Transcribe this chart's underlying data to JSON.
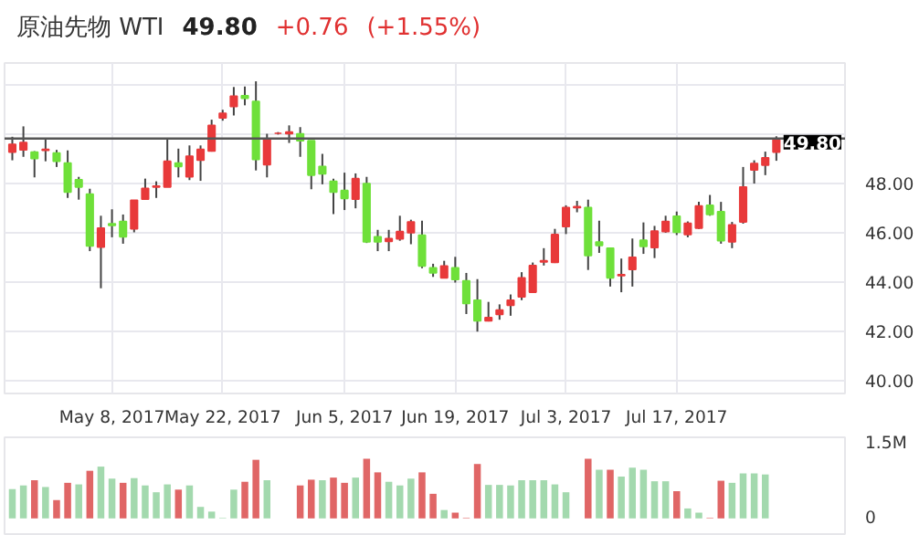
{
  "chart_data": [
    {
      "type": "candlestick",
      "title": "原油先物 WTI",
      "annotations": [
        "49.80",
        "+0.76",
        "(+1.55%)"
      ],
      "categories": [
        null,
        null,
        null,
        null,
        null,
        null,
        null,
        null,
        null,
        "May 8, 2017",
        null,
        null,
        null,
        null,
        null,
        null,
        null,
        null,
        null,
        "May 22, 2017",
        null,
        null,
        null,
        null,
        null,
        null,
        null,
        null,
        null,
        null,
        "Jun 5, 2017",
        null,
        null,
        null,
        null,
        null,
        null,
        null,
        null,
        null,
        "Jun 19, 2017",
        null,
        null,
        null,
        null,
        null,
        null,
        null,
        null,
        null,
        "Jul 3, 2017",
        null,
        null,
        null,
        null,
        null,
        null,
        null,
        null,
        null,
        "Jul 17, 2017",
        null,
        null,
        null,
        null,
        null,
        null,
        null,
        null,
        null
      ],
      "ohlc": [
        [
          49.25,
          49.87,
          48.92,
          49.57
        ],
        [
          49.34,
          50.29,
          49.06,
          49.64
        ],
        [
          49.25,
          49.29,
          48.23,
          48.99
        ],
        [
          49.32,
          49.8,
          48.88,
          49.36
        ],
        [
          49.22,
          49.34,
          48.65,
          48.88
        ],
        [
          48.81,
          49.32,
          47.4,
          47.63
        ],
        [
          48.14,
          48.25,
          47.33,
          47.84
        ],
        [
          47.56,
          47.77,
          45.25,
          45.46
        ],
        [
          45.41,
          46.68,
          43.75,
          46.18
        ],
        [
          46.36,
          46.94,
          45.81,
          46.29
        ],
        [
          46.45,
          46.73,
          45.55,
          45.83
        ],
        [
          46.15,
          47.31,
          46.01,
          47.31
        ],
        [
          47.35,
          48.18,
          47.35,
          47.79
        ],
        [
          47.84,
          48.07,
          47.4,
          47.88
        ],
        [
          47.84,
          49.76,
          47.84,
          48.88
        ],
        [
          48.81,
          49.39,
          48.23,
          48.67
        ],
        [
          48.25,
          49.52,
          48.12,
          49.09
        ],
        [
          48.92,
          49.52,
          48.09,
          49.36
        ],
        [
          49.29,
          50.56,
          49.27,
          50.33
        ],
        [
          50.63,
          50.96,
          50.52,
          50.82
        ],
        [
          51.09,
          51.88,
          50.73,
          51.51
        ],
        [
          51.53,
          51.9,
          51.14,
          51.42
        ],
        [
          51.3,
          52.11,
          48.51,
          48.95
        ],
        [
          48.74,
          49.99,
          48.23,
          49.8
        ],
        [
          50.01,
          50.06,
          49.96,
          50.01
        ],
        [
          49.99,
          50.33,
          49.62,
          50.06
        ],
        [
          49.99,
          50.26,
          49.06,
          49.71
        ],
        [
          49.71,
          49.71,
          47.75,
          48.32
        ],
        [
          48.67,
          49.18,
          47.95,
          48.37
        ],
        [
          48.07,
          48.18,
          46.75,
          47.63
        ],
        [
          47.7,
          48.42,
          46.91,
          47.38
        ],
        [
          47.35,
          48.39,
          46.98,
          48.18
        ],
        [
          47.98,
          48.25,
          45.58,
          45.62
        ],
        [
          45.83,
          46.11,
          45.25,
          45.62
        ],
        [
          45.64,
          46.11,
          45.25,
          45.76
        ],
        [
          45.74,
          46.68,
          45.67,
          46.04
        ],
        [
          45.99,
          46.52,
          45.53,
          46.43
        ],
        [
          45.9,
          46.48,
          44.56,
          44.65
        ],
        [
          44.58,
          44.74,
          44.21,
          44.37
        ],
        [
          44.17,
          44.86,
          44.17,
          44.65
        ],
        [
          44.58,
          45.02,
          43.98,
          44.1
        ],
        [
          44.05,
          44.37,
          42.71,
          43.13
        ],
        [
          43.27,
          44.12,
          42.0,
          42.43
        ],
        [
          42.43,
          43.2,
          42.41,
          42.57
        ],
        [
          42.69,
          43.1,
          42.48,
          42.87
        ],
        [
          43.06,
          43.5,
          42.64,
          43.27
        ],
        [
          43.4,
          44.4,
          43.27,
          44.17
        ],
        [
          43.59,
          44.79,
          43.59,
          44.67
        ],
        [
          44.81,
          45.37,
          44.67,
          44.86
        ],
        [
          44.79,
          46.15,
          44.77,
          45.92
        ],
        [
          46.24,
          47.1,
          45.94,
          47.01
        ],
        [
          47.01,
          47.28,
          46.82,
          47.05
        ],
        [
          47.01,
          47.33,
          44.49,
          45.07
        ],
        [
          45.62,
          46.48,
          45.18,
          45.48
        ],
        [
          45.37,
          45.37,
          43.82,
          44.17
        ],
        [
          44.26,
          44.95,
          43.59,
          44.3
        ],
        [
          44.51,
          45.76,
          43.82,
          45.0
        ],
        [
          45.69,
          46.41,
          45.14,
          45.44
        ],
        [
          45.39,
          46.27,
          44.97,
          46.06
        ],
        [
          46.04,
          46.68,
          45.99,
          46.45
        ],
        [
          46.66,
          46.85,
          45.9,
          46.01
        ],
        [
          45.92,
          46.45,
          45.81,
          46.38
        ],
        [
          46.18,
          47.24,
          46.15,
          47.08
        ],
        [
          47.1,
          47.52,
          46.68,
          46.73
        ],
        [
          46.85,
          47.24,
          45.55,
          45.67
        ],
        [
          45.62,
          46.43,
          45.37,
          46.31
        ],
        [
          46.43,
          48.65,
          46.36,
          47.84
        ],
        [
          48.53,
          48.92,
          47.98,
          48.79
        ],
        [
          48.72,
          49.27,
          48.32,
          49.02
        ],
        [
          49.25,
          49.89,
          48.9,
          49.8
        ]
      ],
      "colors": [
        "#e8393a",
        "#e8393a",
        "#6fe03a",
        "#e8393a",
        "#6fe03a",
        "#6fe03a",
        "#6fe03a",
        "#6fe03a",
        "#e8393a",
        "#6fe03a",
        "#6fe03a",
        "#e8393a",
        "#e8393a",
        "#e8393a",
        "#e8393a",
        "#6fe03a",
        "#e8393a",
        "#e8393a",
        "#e8393a",
        "#e8393a",
        "#e8393a",
        "#6fe03a",
        "#6fe03a",
        "#e8393a",
        "#e8393a",
        "#e8393a",
        "#6fe03a",
        "#6fe03a",
        "#6fe03a",
        "#6fe03a",
        "#6fe03a",
        "#e8393a",
        "#6fe03a",
        "#6fe03a",
        "#e8393a",
        "#e8393a",
        "#e8393a",
        "#6fe03a",
        "#6fe03a",
        "#e8393a",
        "#6fe03a",
        "#6fe03a",
        "#6fe03a",
        "#e8393a",
        "#e8393a",
        "#e8393a",
        "#e8393a",
        "#e8393a",
        "#e8393a",
        "#e8393a",
        "#e8393a",
        "#e8393a",
        "#6fe03a",
        "#6fe03a",
        "#6fe03a",
        "#e8393a",
        "#e8393a",
        "#6fe03a",
        "#e8393a",
        "#e8393a",
        "#6fe03a",
        "#e8393a",
        "#e8393a",
        "#6fe03a",
        "#6fe03a",
        "#e8393a",
        "#e8393a",
        "#e8393a",
        "#e8393a",
        "#e8393a"
      ],
      "ylim": [
        39.5,
        52.85
      ],
      "yticks": [
        {
          "value": 40,
          "label": "40.00"
        },
        {
          "value": 42,
          "label": "42.00"
        },
        {
          "value": 44,
          "label": "44.00"
        },
        {
          "value": 46,
          "label": "46.00"
        },
        {
          "value": 48,
          "label": "48.00"
        },
        {
          "value": 50,
          "label": null
        },
        {
          "value": 52,
          "label": null
        }
      ],
      "ref_lines": [
        {
          "axis": "y",
          "value": 49.8,
          "label": "49.80",
          "color": "#555555"
        }
      ],
      "grid": true
    },
    {
      "type": "bar",
      "categories": [
        null,
        null,
        null,
        null,
        null,
        null,
        null,
        null,
        null,
        null,
        null,
        null,
        null,
        null,
        null,
        null,
        null,
        null,
        null,
        null,
        null,
        null,
        null,
        null,
        null,
        null,
        null,
        null,
        null,
        null,
        null,
        null,
        null,
        null,
        null,
        null,
        null,
        null,
        null,
        null,
        null,
        null,
        null,
        null,
        null,
        null,
        null,
        null,
        null,
        null,
        null,
        null,
        null,
        null,
        null,
        null,
        null,
        null,
        null,
        null,
        null,
        null,
        null,
        null,
        null,
        null,
        null,
        null,
        null,
        null
      ],
      "values": [
        0.56,
        0.63,
        0.73,
        0.6,
        0.35,
        0.68,
        0.65,
        0.91,
        0.99,
        0.76,
        0.68,
        0.77,
        0.63,
        0.5,
        0.65,
        0.55,
        0.63,
        0.22,
        0.13,
        0.01,
        0.55,
        0.7,
        1.12,
        0.73,
        null,
        null,
        0.63,
        0.74,
        0.73,
        0.78,
        0.68,
        0.78,
        1.14,
        0.88,
        0.7,
        0.63,
        0.76,
        0.88,
        0.47,
        0.16,
        0.11,
        0.01,
        1.04,
        0.64,
        0.64,
        0.63,
        0.73,
        0.73,
        0.73,
        0.65,
        0.5,
        null,
        1.14,
        0.93,
        0.93,
        0.8,
        0.97,
        0.93,
        0.71,
        0.71,
        0.52,
        0.19,
        0.11,
        0.01,
        0.72,
        0.68,
        0.86,
        0.86,
        0.84,
        null
      ],
      "colors": [
        "#a3d9ae",
        "#a3d9ae",
        "#e06666",
        "#a3d9ae",
        "#e06666",
        "#e06666",
        "#a3d9ae",
        "#e06666",
        "#a3d9ae",
        "#a3d9ae",
        "#e06666",
        "#a3d9ae",
        "#a3d9ae",
        "#a3d9ae",
        "#a3d9ae",
        "#e06666",
        "#a3d9ae",
        "#a3d9ae",
        "#a3d9ae",
        "#a3d9ae",
        "#a3d9ae",
        "#e06666",
        "#e06666",
        "#a3d9ae",
        "#a3d9ae",
        "#a3d9ae",
        "#e06666",
        "#e06666",
        "#a3d9ae",
        "#e06666",
        "#e06666",
        "#a3d9ae",
        "#e06666",
        "#e06666",
        "#a3d9ae",
        "#a3d9ae",
        "#a3d9ae",
        "#e06666",
        "#e06666",
        "#a3d9ae",
        "#e06666",
        "#e06666",
        "#e06666",
        "#a3d9ae",
        "#a3d9ae",
        "#a3d9ae",
        "#a3d9ae",
        "#a3d9ae",
        "#a3d9ae",
        "#a3d9ae",
        "#a3d9ae",
        "#a3d9ae",
        "#e06666",
        "#a3d9ae",
        "#e06666",
        "#a3d9ae",
        "#a3d9ae",
        "#a3d9ae",
        "#a3d9ae",
        "#a3d9ae",
        "#e06666",
        "#a3d9ae",
        "#a3d9ae",
        "#e06666",
        "#e06666",
        "#a3d9ae",
        "#a3d9ae",
        "#a3d9ae",
        "#a3d9ae",
        "#a3d9ae"
      ],
      "ylim": [
        -0.3,
        1.55
      ],
      "yticks": [
        0,
        {
          "value": 1.5,
          "label": "1.5M"
        }
      ],
      "tick_labels": "y"
    }
  ]
}
